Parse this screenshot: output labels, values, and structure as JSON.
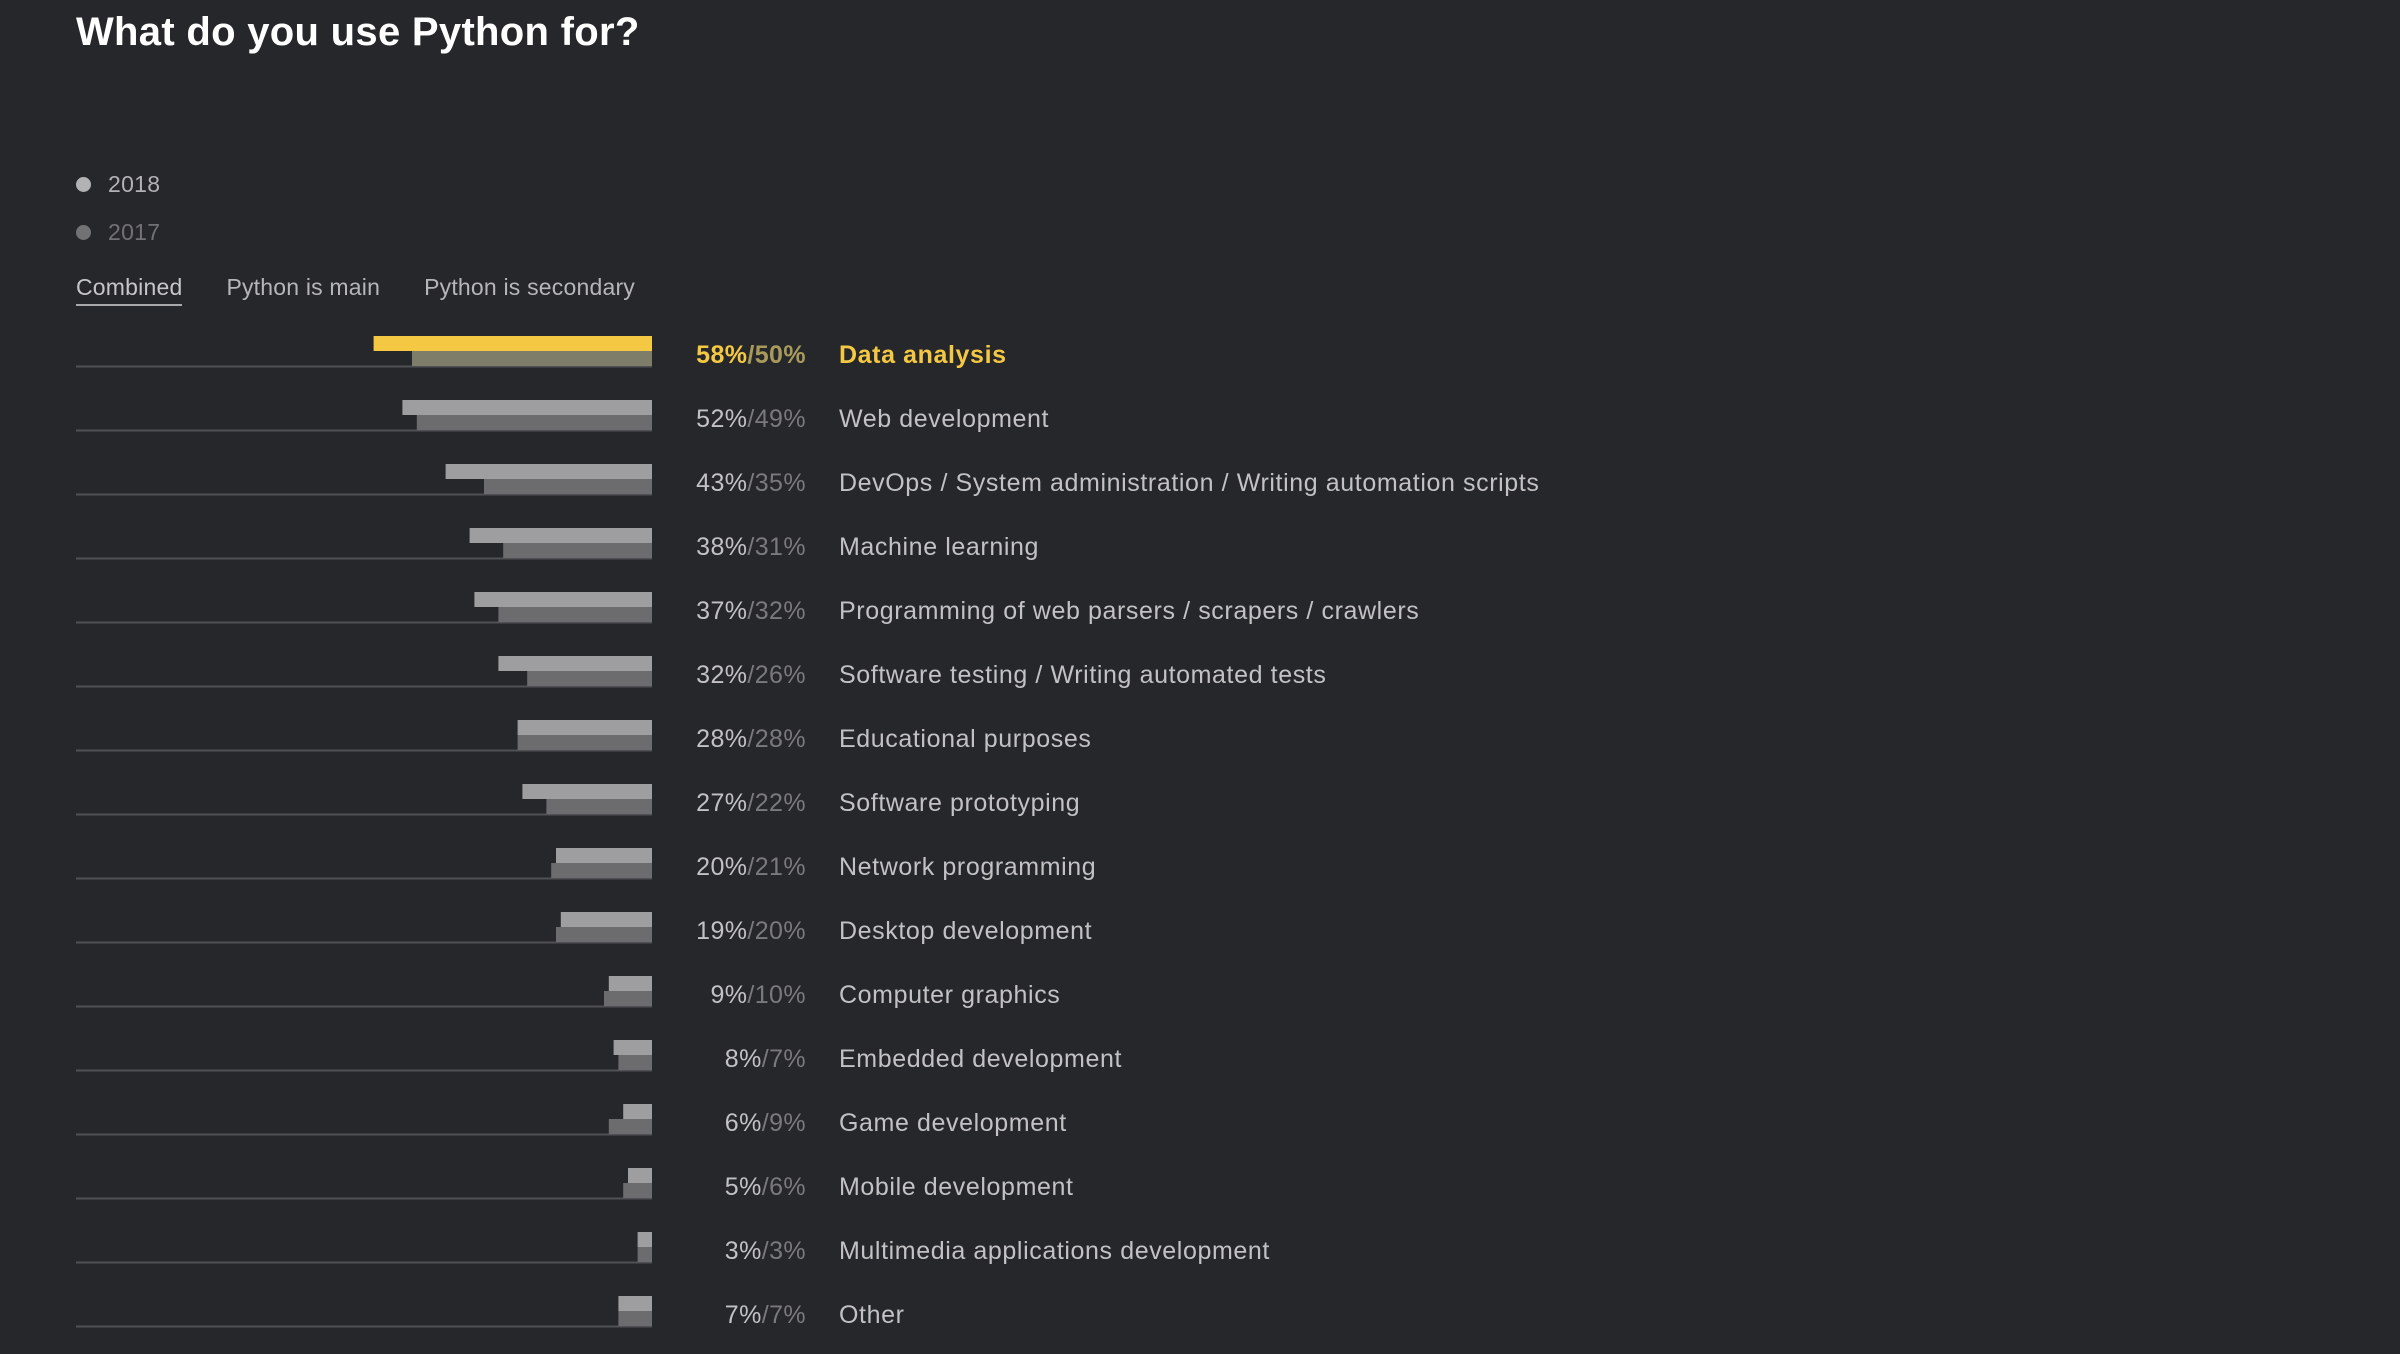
{
  "title": "What do you use Python for?",
  "legend": [
    {
      "label": "2018",
      "color": "#b2b2b4"
    },
    {
      "label": "2017",
      "color": "#727275"
    }
  ],
  "tabs": [
    {
      "label": "Combined",
      "active": true
    },
    {
      "label": "Python is main",
      "active": false
    },
    {
      "label": "Python is secondary",
      "active": false
    }
  ],
  "colors": {
    "background": "#26272b",
    "bar_2018": "#9e9ea0",
    "bar_2017": "#6c6c6f",
    "highlight_2018": "#f4c842",
    "highlight_2017": "#7e7d6a",
    "highlight_text": "#f4c842",
    "highlight_text_2017": "#a79a5b",
    "text": "#c2c2c4",
    "text_2017": "#7a7a7d",
    "baseline": "#505055"
  },
  "chart_data": {
    "type": "bar",
    "orientation": "horizontal",
    "title": "What do you use Python for?",
    "value_suffix": "%",
    "xlim": [
      0,
      100
    ],
    "series": [
      {
        "name": "2018",
        "values": [
          58,
          52,
          43,
          38,
          37,
          32,
          28,
          27,
          20,
          19,
          9,
          8,
          6,
          5,
          3,
          7
        ]
      },
      {
        "name": "2017",
        "values": [
          50,
          49,
          35,
          31,
          32,
          26,
          28,
          22,
          21,
          20,
          10,
          7,
          9,
          6,
          3,
          7
        ]
      }
    ],
    "categories": [
      "Data analysis",
      "Web development",
      "DevOps / System administration / Writing automation scripts",
      "Machine learning",
      "Programming of web parsers / scrapers / crawlers",
      "Software testing / Writing automated tests",
      "Educational purposes",
      "Software prototyping",
      "Network programming",
      "Desktop development",
      "Computer graphics",
      "Embedded development",
      "Game development",
      "Mobile development",
      "Multimedia applications development",
      "Other"
    ],
    "labels_2018": [
      "58%",
      "52%",
      "43%",
      "38%",
      "37%",
      "32%",
      "28%",
      "27%",
      "20%",
      "19%",
      "9%",
      "8%",
      "6%",
      "5%",
      "3%",
      "7%"
    ],
    "labels_2017": [
      "/50%",
      "/49%",
      "/35%",
      "/31%",
      "/32%",
      "/26%",
      "/28%",
      "/22%",
      "/21%",
      "/20%",
      "/10%",
      "/7%",
      "/9%",
      "/6%",
      "/3%",
      "/7%"
    ],
    "highlight_index": 0
  }
}
